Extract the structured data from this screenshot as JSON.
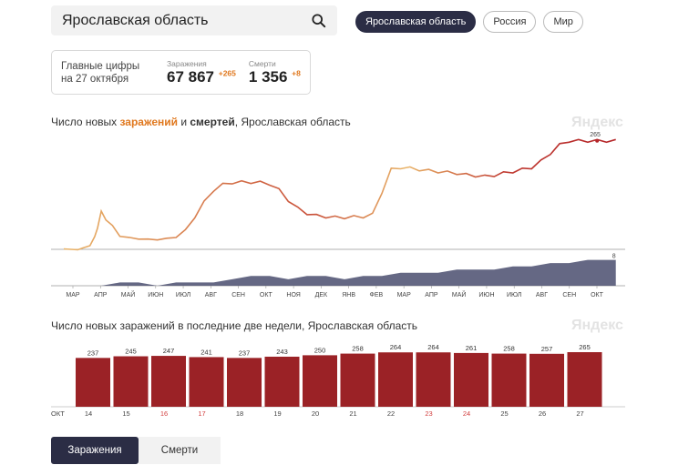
{
  "search": {
    "value": "Ярославская область"
  },
  "region_tabs": [
    {
      "label": "Ярославская область",
      "active": true
    },
    {
      "label": "Россия",
      "active": false
    },
    {
      "label": "Мир",
      "active": false
    }
  ],
  "stats": {
    "label_line1": "Главные цифры",
    "label_line2": "на 27 октября",
    "infections": {
      "caption": "Заражения",
      "value": "67 867",
      "delta": "+265"
    },
    "deaths": {
      "caption": "Смерти",
      "value": "1 356",
      "delta": "+8"
    }
  },
  "chart1": {
    "title_prefix": "Число новых ",
    "title_infections": "заражений",
    "title_and": " и ",
    "title_deaths": "смертей",
    "title_suffix": ", Ярославская область",
    "watermark": "Яндекс",
    "last_value_label": "265",
    "deaths_last_label": "8"
  },
  "chart2": {
    "title": "Число новых заражений в последние две недели, Ярославская область",
    "watermark": "Яндекс",
    "month_label": "ОКТ"
  },
  "bottom_tabs": [
    {
      "label": "Заражения",
      "active": true
    },
    {
      "label": "Смерти",
      "active": false
    }
  ],
  "colors": {
    "accent_dark": "#2b2d45",
    "infection_orange": "#e0781e",
    "line_start": "#e9b468",
    "line_end": "#b5272b",
    "bar": "#9b2226",
    "deaths_area": "#4a4d6e"
  },
  "chart_data": [
    {
      "type": "line",
      "series": [
        {
          "name": "заражений",
          "x": [
            0,
            15,
            20,
            28,
            33,
            36,
            40,
            45,
            52,
            60,
            70,
            80,
            90,
            100,
            110,
            120,
            130,
            140,
            150,
            160,
            170,
            180,
            190,
            200,
            210,
            220,
            230,
            240,
            250,
            260,
            270,
            280,
            290,
            300,
            310,
            320,
            330,
            340,
            350,
            360,
            370,
            380,
            390,
            400,
            410,
            420,
            430,
            440,
            450,
            460,
            470,
            480,
            490,
            500,
            510,
            520,
            530,
            540,
            550,
            560,
            570,
            580,
            590
          ],
          "values": [
            0,
            0,
            2,
            10,
            30,
            55,
            90,
            75,
            55,
            35,
            28,
            26,
            24,
            24,
            26,
            30,
            45,
            80,
            115,
            145,
            158,
            163,
            164,
            164,
            163,
            160,
            145,
            120,
            100,
            88,
            82,
            80,
            78,
            78,
            79,
            80,
            85,
            140,
            195,
            200,
            198,
            195,
            192,
            190,
            188,
            186,
            182,
            180,
            178,
            181,
            186,
            190,
            195,
            200,
            215,
            235,
            255,
            265,
            265,
            265,
            265,
            265,
            265
          ]
        },
        {
          "name": "смертей",
          "x": [
            0,
            20,
            40,
            60,
            80,
            100,
            120,
            130,
            140,
            160,
            180,
            200,
            220,
            240,
            260,
            280,
            300,
            320,
            340,
            360,
            380,
            400,
            420,
            440,
            460,
            480,
            500,
            520,
            540,
            560,
            575,
            590
          ],
          "values": [
            0,
            0,
            0,
            1,
            1,
            0,
            1,
            1,
            1,
            1,
            2,
            3,
            3,
            2,
            3,
            3,
            2,
            3,
            3,
            4,
            4,
            4,
            5,
            5,
            5,
            6,
            6,
            7,
            7,
            8,
            8,
            8
          ]
        }
      ],
      "x_tick_labels": [
        "МАР",
        "АПР",
        "МАЙ",
        "ИЮН",
        "ИЮЛ",
        "АВГ",
        "СЕН",
        "ОКТ",
        "НОЯ",
        "ДЕК",
        "ЯНВ",
        "ФЕВ",
        "МАР",
        "АПР",
        "МАЙ",
        "ИЮН",
        "ИЮЛ",
        "АВГ",
        "СЕН",
        "ОКТ"
      ]
    },
    {
      "type": "bar",
      "categories": [
        "14",
        "15",
        "16",
        "17",
        "18",
        "19",
        "20",
        "21",
        "22",
        "23",
        "24",
        "25",
        "26",
        "27"
      ],
      "values": [
        237,
        245,
        247,
        241,
        237,
        243,
        250,
        258,
        264,
        264,
        261,
        258,
        257,
        265
      ],
      "weekend": [
        false,
        false,
        true,
        true,
        false,
        false,
        false,
        false,
        false,
        true,
        true,
        false,
        false,
        false
      ]
    }
  ]
}
